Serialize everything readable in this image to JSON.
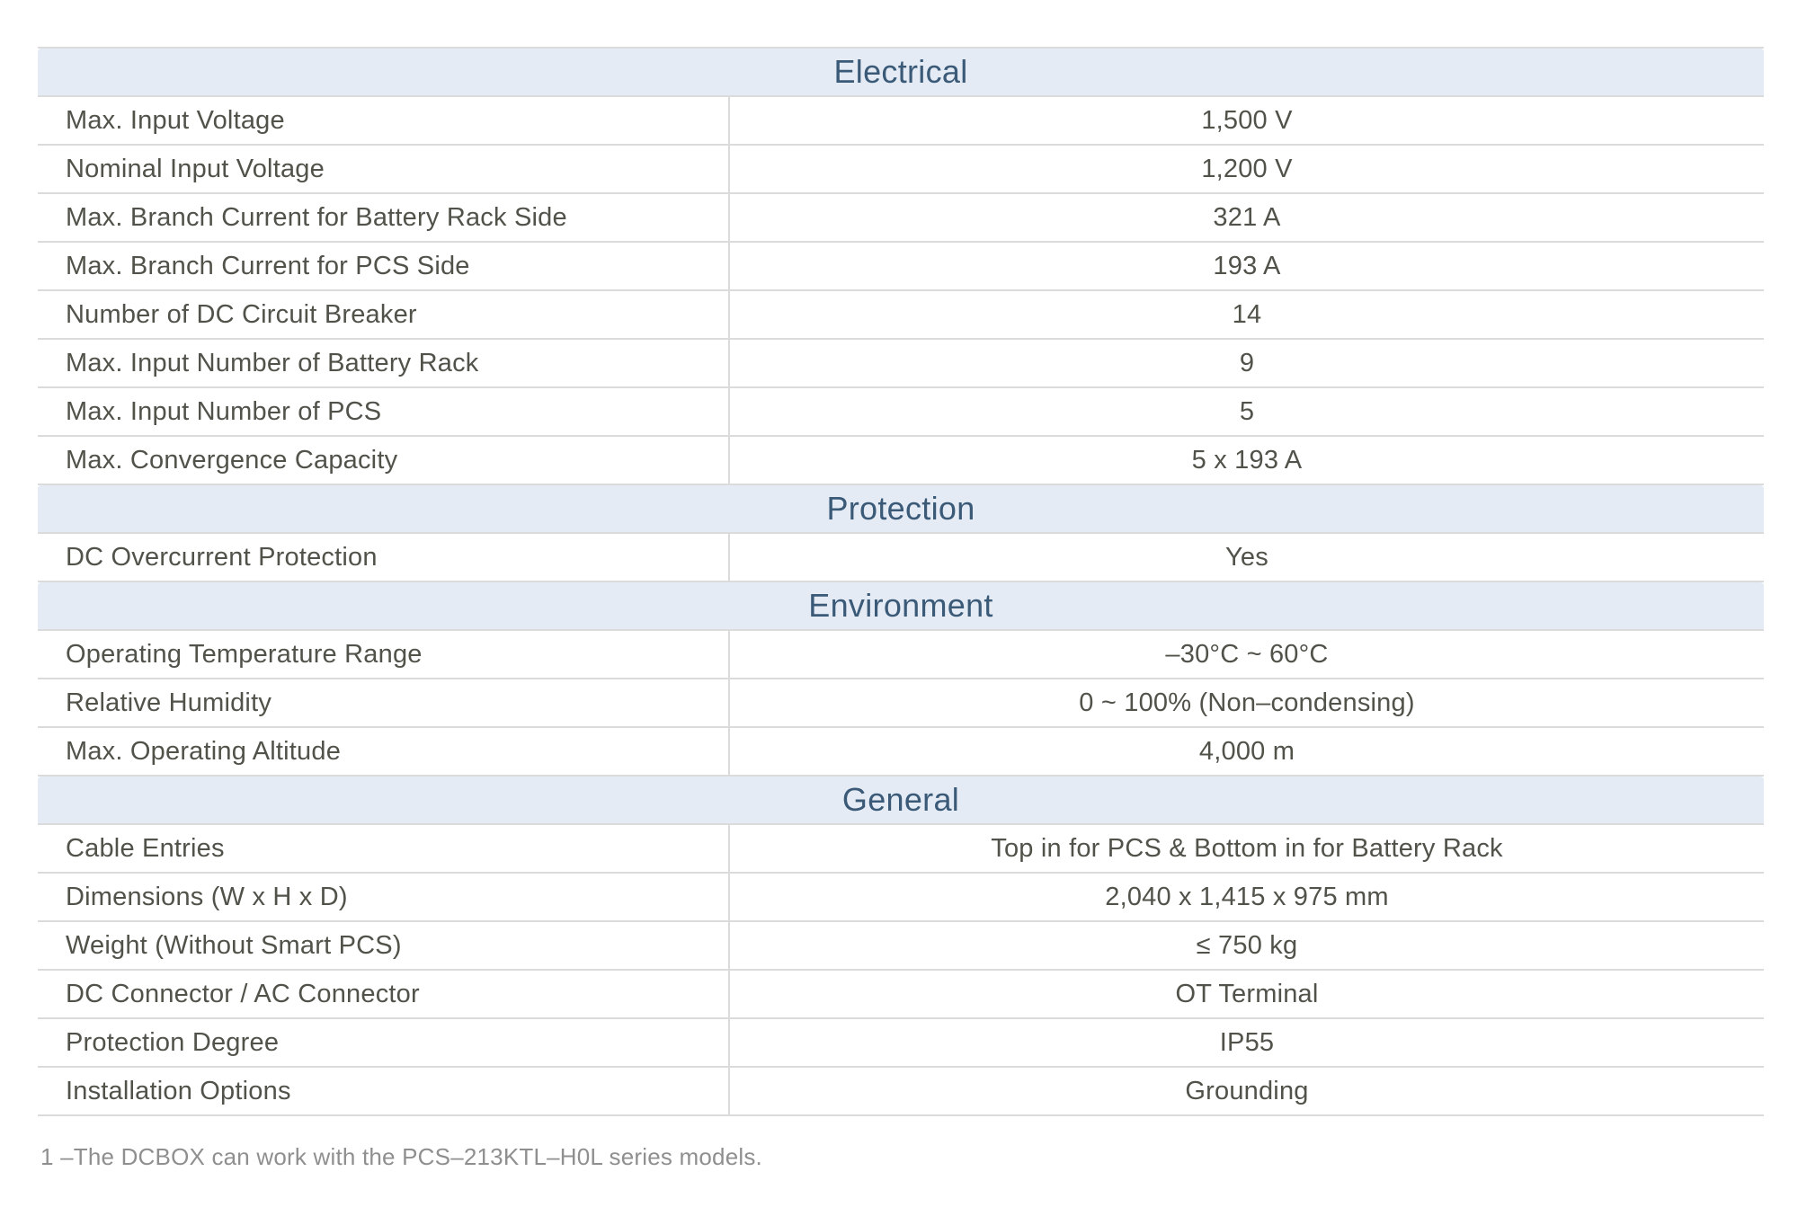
{
  "table": {
    "column_layout": [
      "parameter",
      "value"
    ],
    "sections": [
      {
        "title": "Electrical",
        "rows": [
          {
            "label": "Max. Input Voltage",
            "value": "1,500 V"
          },
          {
            "label": "Nominal Input Voltage",
            "value": "1,200 V"
          },
          {
            "label": "Max. Branch Current for Battery Rack Side",
            "value": "321 A"
          },
          {
            "label": "Max. Branch Current for PCS Side",
            "value": "193 A"
          },
          {
            "label": "Number of DC Circuit Breaker",
            "value": "14"
          },
          {
            "label": "Max. Input Number of Battery Rack",
            "value": "9"
          },
          {
            "label": "Max. Input Number of PCS",
            "value": "5"
          },
          {
            "label": "Max. Convergence Capacity",
            "value": "5 x 193 A"
          }
        ]
      },
      {
        "title": "Protection",
        "rows": [
          {
            "label": "DC Overcurrent Protection",
            "value": "Yes"
          }
        ]
      },
      {
        "title": "Environment",
        "rows": [
          {
            "label": "Operating Temperature Range",
            "value": "–30°C ~ 60°C"
          },
          {
            "label": "Relative Humidity",
            "value": "0 ~ 100% (Non–condensing)"
          },
          {
            "label": "Max. Operating Altitude",
            "value": "4,000 m"
          }
        ]
      },
      {
        "title": "General",
        "rows": [
          {
            "label": "Cable Entries",
            "value": "Top in for PCS & Bottom in for Battery Rack"
          },
          {
            "label": "Dimensions (W x H x D)",
            "value": "2,040 x 1,415 x 975 mm"
          },
          {
            "label": "Weight (Without Smart PCS)",
            "value": "≤ 750 kg"
          },
          {
            "label": "DC Connector / AC Connector",
            "value": "OT Terminal"
          },
          {
            "label": "Protection Degree",
            "value": "IP55"
          },
          {
            "label": "Installation Options",
            "value": "Grounding"
          }
        ]
      }
    ]
  },
  "footnote": "1 –The DCBOX can work with the PCS–213KTL–H0L series models.",
  "colors": {
    "section_header_background": "#e4ebf5",
    "section_header_text": "#3a5a77",
    "body_text": "#51524a",
    "grid_line": "#dbdbdb",
    "footnote_text": "#8f8f8f"
  }
}
